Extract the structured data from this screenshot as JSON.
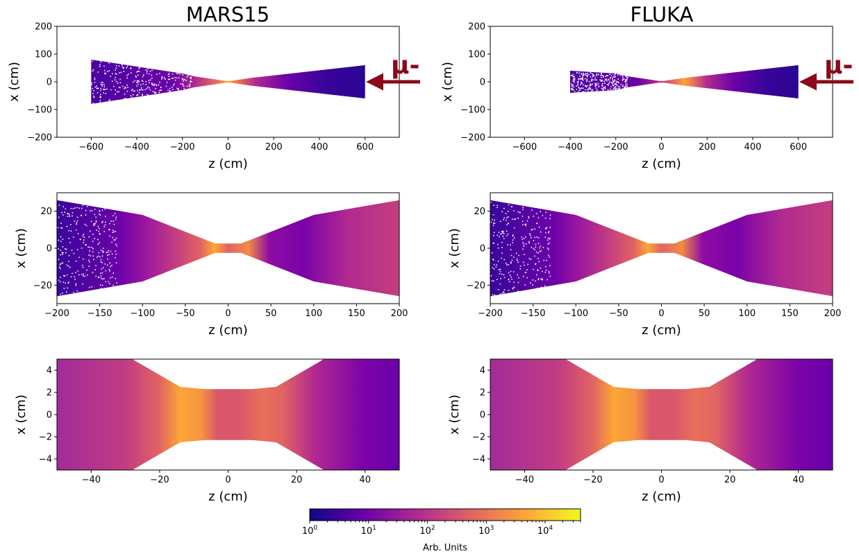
{
  "column_titles": [
    "MARS15",
    "FLUKA"
  ],
  "chart_data": [
    {
      "type": "heatmap",
      "code": "MARS15",
      "title": "MARS15",
      "xlabel": "z (cm)",
      "ylabel": "x (cm)",
      "xlim": [
        -750,
        750
      ],
      "ylim": [
        -200,
        200
      ],
      "xticks": [
        -600,
        -400,
        -200,
        0,
        200,
        400,
        600
      ],
      "yticks": [
        -200,
        -100,
        0,
        100,
        200
      ],
      "profile": {
        "z": [
          -600,
          -200,
          -150,
          -100,
          -10,
          10,
          100,
          600
        ],
        "half_width": [
          80,
          30,
          20,
          14,
          3,
          3,
          14,
          60
        ]
      },
      "beam_label": "μ-",
      "beam_direction": "negative-z"
    },
    {
      "type": "heatmap",
      "code": "FLUKA",
      "title": "FLUKA",
      "xlabel": "z (cm)",
      "ylabel": "x (cm)",
      "xlim": [
        -750,
        750
      ],
      "ylim": [
        -200,
        200
      ],
      "xticks": [
        -600,
        -400,
        -200,
        0,
        200,
        400,
        600
      ],
      "yticks": [
        -200,
        -100,
        0,
        100,
        200
      ],
      "profile": {
        "z": [
          -400,
          -200,
          -150,
          -100,
          -10,
          10,
          100,
          600
        ],
        "half_width": [
          40,
          30,
          20,
          14,
          3,
          3,
          14,
          60
        ]
      },
      "beam_label": "μ-",
      "beam_direction": "negative-z"
    },
    {
      "type": "heatmap",
      "code": "MARS15",
      "xlabel": "z (cm)",
      "ylabel": "x (cm)",
      "xlim": [
        -200,
        200
      ],
      "ylim": [
        -30,
        30
      ],
      "xticks": [
        -200,
        -150,
        -100,
        -50,
        0,
        50,
        100,
        150,
        200
      ],
      "yticks": [
        -20,
        0,
        20
      ],
      "profile": {
        "z": [
          -200,
          -100,
          -15,
          15,
          100,
          200
        ],
        "half_width": [
          26,
          18,
          2.5,
          2.5,
          18,
          26
        ]
      }
    },
    {
      "type": "heatmap",
      "code": "FLUKA",
      "xlabel": "z (cm)",
      "ylabel": "x (cm)",
      "xlim": [
        -200,
        200
      ],
      "ylim": [
        -30,
        30
      ],
      "xticks": [
        -200,
        -150,
        -100,
        -50,
        0,
        50,
        100,
        150,
        200
      ],
      "yticks": [
        -20,
        0,
        20
      ],
      "profile": {
        "z": [
          -200,
          -100,
          -15,
          15,
          100,
          200
        ],
        "half_width": [
          26,
          18,
          2.5,
          2.5,
          18,
          26
        ]
      }
    },
    {
      "type": "heatmap",
      "code": "MARS15",
      "xlabel": "z (cm)",
      "ylabel": "x (cm)",
      "xlim": [
        -50,
        50
      ],
      "ylim": [
        -5,
        5
      ],
      "xticks": [
        -40,
        -20,
        0,
        20,
        40
      ],
      "yticks": [
        -4,
        -2,
        0,
        2,
        4
      ],
      "profile": {
        "z": [
          -50,
          -28,
          -14,
          -7,
          7,
          14,
          28,
          50
        ],
        "half_width": [
          5,
          5,
          2.5,
          2.3,
          2.3,
          2.5,
          5,
          5
        ]
      }
    },
    {
      "type": "heatmap",
      "code": "FLUKA",
      "xlabel": "z (cm)",
      "ylabel": "x (cm)",
      "xlim": [
        -50,
        50
      ],
      "ylim": [
        -5,
        5
      ],
      "xticks": [
        -40,
        -20,
        0,
        20,
        40
      ],
      "yticks": [
        -4,
        -2,
        0,
        2,
        4
      ],
      "profile": {
        "z": [
          -50,
          -28,
          -14,
          -7,
          7,
          14,
          28,
          50
        ],
        "half_width": [
          5,
          5,
          2.5,
          2.3,
          2.3,
          2.5,
          5,
          5
        ]
      }
    }
  ],
  "colorbar": {
    "scale": "log",
    "colormap": "plasma",
    "range": [
      1,
      40000
    ],
    "tick_labels": [
      "10^0",
      "10^1",
      "10^2",
      "10^3",
      "10^4"
    ],
    "label": "Arb. Units",
    "colors": [
      "#0d0887",
      "#6a00a8",
      "#b12a90",
      "#e16462",
      "#fca636",
      "#f0f921"
    ]
  }
}
